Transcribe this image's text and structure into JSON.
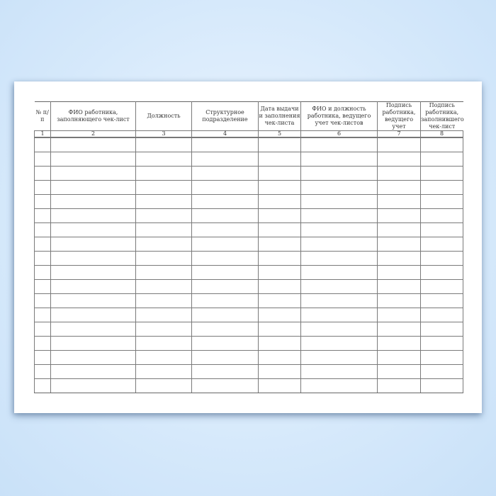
{
  "form": {
    "columns": [
      {
        "header": "№ п/п",
        "number": "1"
      },
      {
        "header": "ФИО работника, заполняющего чек-лист",
        "number": "2"
      },
      {
        "header": "Должность",
        "number": "3"
      },
      {
        "header": "Структурное подразделение",
        "number": "4"
      },
      {
        "header": "Дата выдачи и заполнения чек-листа",
        "number": "5"
      },
      {
        "header": "ФИО и должность работника, ведущего учет чек-листов",
        "number": "6"
      },
      {
        "header": "Подпись работника, ведущего учет",
        "number": "7"
      },
      {
        "header": "Подпись работника, заполнившего чек-лист",
        "number": "8"
      }
    ]
  }
}
